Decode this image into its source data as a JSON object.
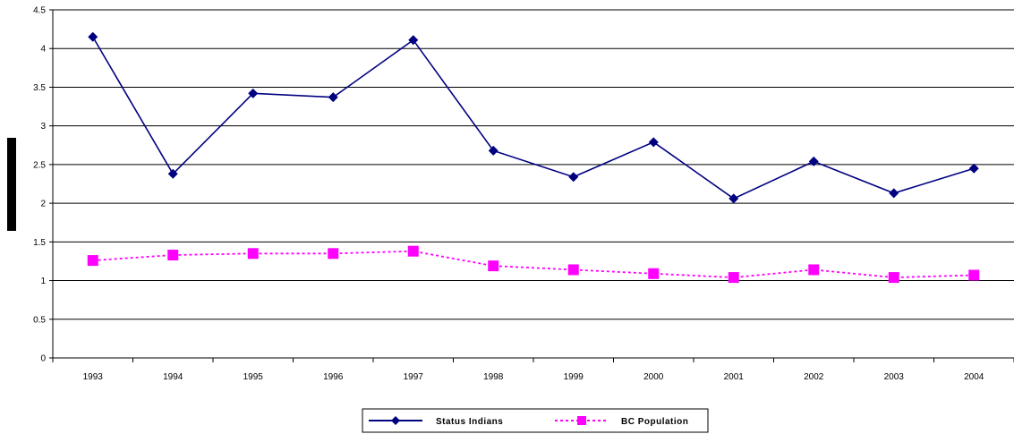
{
  "chart_data": {
    "type": "line",
    "title": "",
    "xlabel": "",
    "ylabel": "",
    "categories": [
      "1993",
      "1994",
      "1995",
      "1996",
      "1997",
      "1998",
      "1999",
      "2000",
      "2001",
      "2002",
      "2003",
      "2004"
    ],
    "ylim": [
      0,
      4.5
    ],
    "yticks": [
      "0",
      "0.5",
      "1",
      "1.5",
      "2",
      "2.5",
      "3",
      "3.5",
      "4",
      "4.5"
    ],
    "ytick_values": [
      0,
      0.5,
      1,
      1.5,
      2,
      2.5,
      3,
      3.5,
      4,
      4.5
    ],
    "grid": true,
    "legend_position": "bottom",
    "series": [
      {
        "name": "Status Indians",
        "color": "#000080",
        "marker": "diamond",
        "line_style": "solid",
        "values": [
          4.15,
          2.38,
          3.42,
          3.37,
          4.11,
          2.68,
          2.34,
          2.79,
          2.06,
          2.54,
          2.13,
          2.45
        ]
      },
      {
        "name": "BC Population",
        "color": "#ff00ff",
        "marker": "square",
        "line_style": "dashed",
        "values": [
          1.26,
          1.33,
          1.35,
          1.35,
          1.38,
          1.19,
          1.14,
          1.09,
          1.04,
          1.14,
          1.04,
          1.07
        ]
      }
    ]
  }
}
